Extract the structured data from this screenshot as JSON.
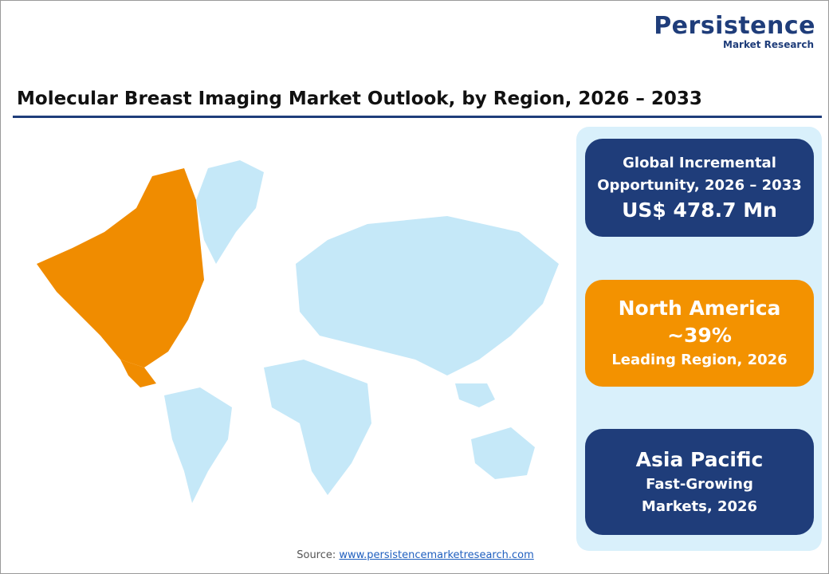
{
  "logo": {
    "name": "Persistence",
    "tagline": "Market Research"
  },
  "title": "Molecular Breast Imaging Market Outlook, by Region, 2026 – 2033",
  "cards": [
    {
      "label": "Global Incremental Opportunity, 2026 – 2033",
      "value": "US$ 478.7 Mn"
    },
    {
      "heading": "North America",
      "value": "~39%",
      "label": "Leading Region, 2026"
    },
    {
      "heading": "Asia Pacific",
      "label": "Fast-Growing Markets, 2026"
    }
  ],
  "source": {
    "prefix": "Source:",
    "link": "www.persistencemarketresearch.com"
  }
}
